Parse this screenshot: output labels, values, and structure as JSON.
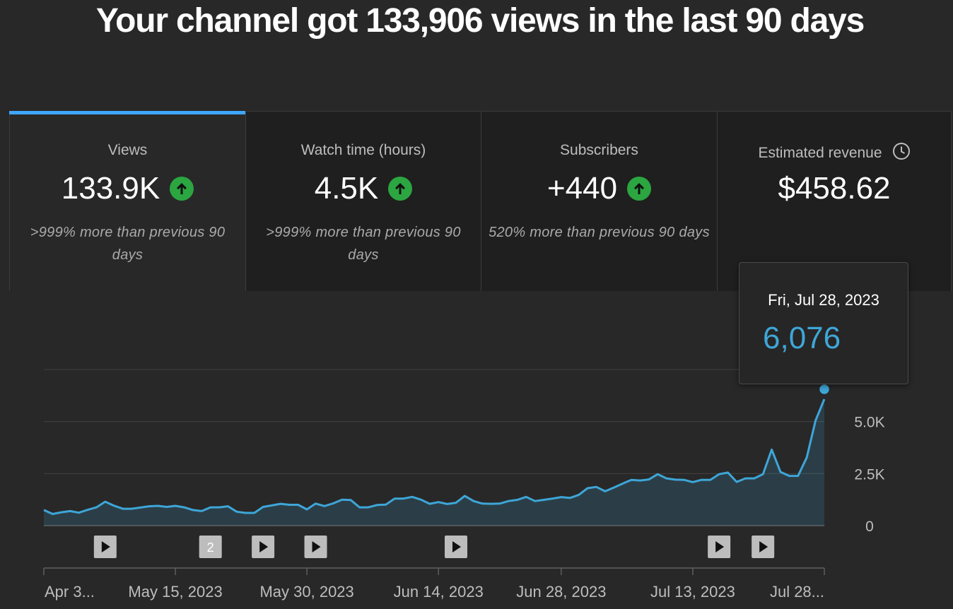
{
  "headline": "Your channel got 133,906 views in the last 90 days",
  "cards": [
    {
      "title": "Views",
      "value": "133.9K",
      "trend": "up",
      "compare": ">999% more than previous 90 days"
    },
    {
      "title": "Watch time (hours)",
      "value": "4.5K",
      "trend": "up",
      "compare": ">999% more than previous 90 days"
    },
    {
      "title": "Subscribers",
      "value": "+440",
      "trend": "up",
      "compare": "520% more than previous 90 days"
    },
    {
      "title": "Estimated revenue",
      "value": "$458.62",
      "trend": "none",
      "compare": "",
      "icon": "clock-icon"
    }
  ],
  "tooltip": {
    "date": "Fri, Jul 28, 2023",
    "value": "6,076"
  },
  "colors": {
    "accent": "#3ea6ff",
    "line": "#3ea6d8",
    "up": "#2ba640"
  },
  "chart_data": {
    "type": "area",
    "series": [
      {
        "values": [
          750,
          560,
          640,
          700,
          620,
          760,
          880,
          1150,
          960,
          810,
          810,
          870,
          930,
          950,
          900,
          950,
          880,
          750,
          700,
          880,
          880,
          930,
          670,
          610,
          610,
          900,
          970,
          1050,
          1000,
          1000,
          780,
          1060,
          940,
          1070,
          1250,
          1230,
          880,
          880,
          990,
          1010,
          1300,
          1300,
          1380,
          1250,
          1050,
          1130,
          1040,
          1100,
          1430,
          1180,
          1060,
          1050,
          1060,
          1180,
          1240,
          1380,
          1180,
          1240,
          1300,
          1370,
          1330,
          1480,
          1800,
          1860,
          1650,
          1830,
          2020,
          2200,
          2170,
          2220,
          2470,
          2270,
          2210,
          2200,
          2090,
          2200,
          2200,
          2470,
          2550,
          2100,
          2270,
          2270,
          2470,
          3650,
          2580,
          2390,
          2390,
          3280,
          5050,
          6076
        ]
      }
    ],
    "ylim": [
      0,
      7500
    ],
    "yticks": [
      {
        "value": 0,
        "label": "0"
      },
      {
        "value": 2500,
        "label": "2.5K"
      },
      {
        "value": 5000,
        "label": "5.0K"
      }
    ],
    "xticks": [
      {
        "index": 0,
        "label": "Apr 3..."
      },
      {
        "index": 15,
        "label": "May 15, 2023"
      },
      {
        "index": 30,
        "label": "May 30, 2023"
      },
      {
        "index": 45,
        "label": "Jun 14, 2023"
      },
      {
        "index": 59,
        "label": "Jun 28, 2023"
      },
      {
        "index": 74,
        "label": "Jul 13, 2023"
      },
      {
        "index": 89,
        "label": "Jul 28..."
      }
    ],
    "markers": [
      {
        "index": 7,
        "label": ""
      },
      {
        "index": 19,
        "label": "2"
      },
      {
        "index": 25,
        "label": ""
      },
      {
        "index": 31,
        "label": ""
      },
      {
        "index": 47,
        "label": ""
      },
      {
        "index": 77,
        "label": ""
      },
      {
        "index": 82,
        "label": ""
      }
    ],
    "highlight_index": 89
  }
}
